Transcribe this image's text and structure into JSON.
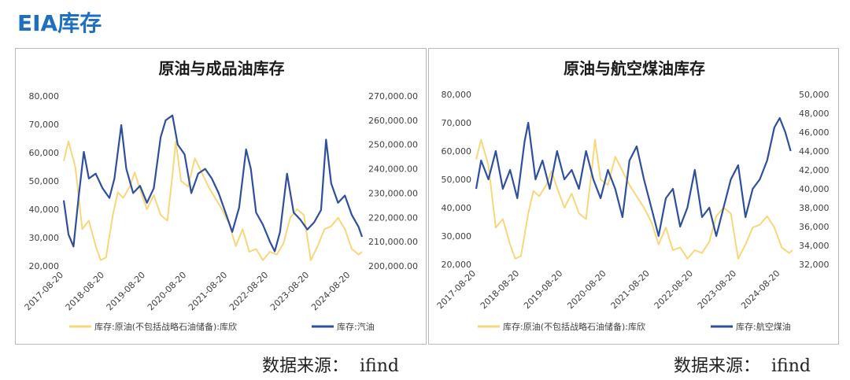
{
  "page": {
    "title": "EIA库存"
  },
  "colors": {
    "title": "#1f6fc1",
    "crude": "#f7d77a",
    "product": "#2f4f9d",
    "axis_text": "#404040"
  },
  "source_prefix": "数据来源：",
  "source_name": "ifind",
  "chart_data": [
    {
      "type": "line",
      "title": "原油与成品油库存",
      "x_ticks": [
        "2017-08-20",
        "2018-08-20",
        "2019-08-20",
        "2020-08-20",
        "2021-08-20",
        "2022-08-20",
        "2023-08-20",
        "2024-08-20"
      ],
      "x_range": [
        "2017-08-20",
        "2024-12-01"
      ],
      "left_axis": {
        "min": 20000,
        "max": 80000,
        "step": 10000,
        "labels": [
          "80,000",
          "70,000",
          "60,000",
          "50,000",
          "40,000",
          "30,000",
          "20,000"
        ]
      },
      "right_axis": {
        "min": 200000,
        "max": 270000,
        "step": 10000,
        "labels": [
          "270,000.00",
          "260,000.00",
          "250,000.00",
          "240,000.00",
          "230,000.00",
          "220,000.00",
          "210,000.00",
          "200,000.00"
        ]
      },
      "legend_position": "bottom",
      "series": [
        {
          "name": "库存:原油(不包括战略石油储备):库欣",
          "axis": "left",
          "color": "#f7d77a",
          "points": [
            [
              "2017-08-20",
              57000
            ],
            [
              "2017-10-01",
              64000
            ],
            [
              "2017-12-01",
              55000
            ],
            [
              "2018-02-01",
              33000
            ],
            [
              "2018-04-01",
              36000
            ],
            [
              "2018-06-01",
              27000
            ],
            [
              "2018-07-15",
              22000
            ],
            [
              "2018-09-01",
              23000
            ],
            [
              "2018-11-01",
              38000
            ],
            [
              "2018-12-15",
              46000
            ],
            [
              "2019-02-01",
              44000
            ],
            [
              "2019-04-01",
              48000
            ],
            [
              "2019-05-15",
              53000
            ],
            [
              "2019-07-01",
              47000
            ],
            [
              "2019-09-01",
              40000
            ],
            [
              "2019-11-01",
              45000
            ],
            [
              "2020-01-01",
              38000
            ],
            [
              "2020-03-01",
              36000
            ],
            [
              "2020-04-15",
              52000
            ],
            [
              "2020-05-15",
              64000
            ],
            [
              "2020-07-01",
              50000
            ],
            [
              "2020-09-01",
              48000
            ],
            [
              "2020-11-01",
              58000
            ],
            [
              "2021-01-01",
              53000
            ],
            [
              "2021-03-01",
              48000
            ],
            [
              "2021-05-01",
              44000
            ],
            [
              "2021-07-01",
              40000
            ],
            [
              "2021-09-01",
              35000
            ],
            [
              "2021-11-01",
              27000
            ],
            [
              "2022-01-01",
              33000
            ],
            [
              "2022-03-01",
              25000
            ],
            [
              "2022-05-01",
              26000
            ],
            [
              "2022-07-01",
              22000
            ],
            [
              "2022-09-01",
              25000
            ],
            [
              "2022-11-01",
              24000
            ],
            [
              "2023-01-01",
              28000
            ],
            [
              "2023-03-01",
              37000
            ],
            [
              "2023-05-01",
              40000
            ],
            [
              "2023-07-01",
              38000
            ],
            [
              "2023-09-01",
              22000
            ],
            [
              "2023-11-01",
              27000
            ],
            [
              "2024-01-01",
              33000
            ],
            [
              "2024-03-01",
              34000
            ],
            [
              "2024-05-01",
              37000
            ],
            [
              "2024-07-01",
              33000
            ],
            [
              "2024-09-01",
              26000
            ],
            [
              "2024-11-01",
              24000
            ],
            [
              "2024-12-01",
              25000
            ]
          ]
        },
        {
          "name": "库存:汽油",
          "axis": "right",
          "color": "#2f4f9d",
          "points": [
            [
              "2017-08-20",
              227000
            ],
            [
              "2017-10-01",
              213000
            ],
            [
              "2017-11-15",
              208000
            ],
            [
              "2018-01-01",
              229000
            ],
            [
              "2018-02-15",
              247000
            ],
            [
              "2018-04-01",
              236000
            ],
            [
              "2018-06-01",
              238000
            ],
            [
              "2018-08-01",
              232000
            ],
            [
              "2018-10-01",
              228000
            ],
            [
              "2018-11-15",
              236000
            ],
            [
              "2019-01-15",
              258000
            ],
            [
              "2019-03-01",
              240000
            ],
            [
              "2019-05-01",
              230000
            ],
            [
              "2019-07-01",
              233000
            ],
            [
              "2019-09-01",
              226000
            ],
            [
              "2019-11-01",
              232000
            ],
            [
              "2020-01-01",
              253000
            ],
            [
              "2020-02-15",
              260000
            ],
            [
              "2020-04-15",
              262000
            ],
            [
              "2020-06-01",
              250000
            ],
            [
              "2020-08-01",
              246000
            ],
            [
              "2020-10-01",
              230000
            ],
            [
              "2020-12-01",
              238000
            ],
            [
              "2021-02-01",
              240000
            ],
            [
              "2021-04-01",
              236000
            ],
            [
              "2021-06-01",
              230000
            ],
            [
              "2021-08-01",
              222000
            ],
            [
              "2021-10-01",
              214000
            ],
            [
              "2021-12-01",
              224000
            ],
            [
              "2022-02-01",
              248000
            ],
            [
              "2022-03-15",
              240000
            ],
            [
              "2022-05-01",
              222000
            ],
            [
              "2022-07-01",
              217000
            ],
            [
              "2022-09-01",
              210000
            ],
            [
              "2022-10-15",
              206000
            ],
            [
              "2022-12-01",
              214000
            ],
            [
              "2023-02-01",
              238000
            ],
            [
              "2023-04-01",
              222000
            ],
            [
              "2023-06-01",
              219000
            ],
            [
              "2023-08-01",
              215000
            ],
            [
              "2023-10-01",
              218000
            ],
            [
              "2023-12-01",
              223000
            ],
            [
              "2024-01-15",
              252000
            ],
            [
              "2024-03-01",
              234000
            ],
            [
              "2024-05-01",
              226000
            ],
            [
              "2024-07-01",
              229000
            ],
            [
              "2024-09-01",
              221000
            ],
            [
              "2024-11-01",
              216000
            ],
            [
              "2024-12-01",
              212000
            ]
          ]
        }
      ]
    },
    {
      "type": "line",
      "title": "原油与航空煤油库存",
      "x_ticks": [
        "2017-08-20",
        "2018-08-20",
        "2019-08-20",
        "2020-08-20",
        "2021-08-20",
        "2022-08-20",
        "2023-08-20",
        "2024-08-20"
      ],
      "x_range": [
        "2017-08-20",
        "2024-12-01"
      ],
      "left_axis": {
        "min": 20000,
        "max": 80000,
        "step": 10000,
        "labels": [
          "80,000",
          "70,000",
          "60,000",
          "50,000",
          "40,000",
          "30,000",
          "20,000"
        ]
      },
      "right_axis": {
        "min": 32000,
        "max": 50000,
        "step": 2000,
        "labels": [
          "50,000",
          "48,000",
          "46,000",
          "44,000",
          "42,000",
          "40,000",
          "38,000",
          "36,000",
          "34,000",
          "32,000"
        ]
      },
      "legend_position": "bottom",
      "series": [
        {
          "name": "库存:原油(不包括战略石油储备):库欣",
          "axis": "left",
          "color": "#f7d77a",
          "points": [
            [
              "2017-08-20",
              57000
            ],
            [
              "2017-10-01",
              64000
            ],
            [
              "2017-12-01",
              55000
            ],
            [
              "2018-02-01",
              33000
            ],
            [
              "2018-04-01",
              36000
            ],
            [
              "2018-06-01",
              27000
            ],
            [
              "2018-07-15",
              22000
            ],
            [
              "2018-09-01",
              23000
            ],
            [
              "2018-11-01",
              38000
            ],
            [
              "2018-12-15",
              46000
            ],
            [
              "2019-02-01",
              44000
            ],
            [
              "2019-04-01",
              48000
            ],
            [
              "2019-05-15",
              53000
            ],
            [
              "2019-07-01",
              47000
            ],
            [
              "2019-09-01",
              40000
            ],
            [
              "2019-11-01",
              45000
            ],
            [
              "2020-01-01",
              38000
            ],
            [
              "2020-03-01",
              36000
            ],
            [
              "2020-04-15",
              52000
            ],
            [
              "2020-05-15",
              64000
            ],
            [
              "2020-07-01",
              50000
            ],
            [
              "2020-09-01",
              48000
            ],
            [
              "2020-11-01",
              58000
            ],
            [
              "2021-01-01",
              53000
            ],
            [
              "2021-03-01",
              48000
            ],
            [
              "2021-05-01",
              44000
            ],
            [
              "2021-07-01",
              40000
            ],
            [
              "2021-09-01",
              35000
            ],
            [
              "2021-11-01",
              27000
            ],
            [
              "2022-01-01",
              33000
            ],
            [
              "2022-03-01",
              25000
            ],
            [
              "2022-05-01",
              26000
            ],
            [
              "2022-07-01",
              22000
            ],
            [
              "2022-09-01",
              25000
            ],
            [
              "2022-11-01",
              24000
            ],
            [
              "2023-01-01",
              28000
            ],
            [
              "2023-03-01",
              37000
            ],
            [
              "2023-05-01",
              40000
            ],
            [
              "2023-07-01",
              38000
            ],
            [
              "2023-09-01",
              22000
            ],
            [
              "2023-11-01",
              27000
            ],
            [
              "2024-01-01",
              33000
            ],
            [
              "2024-03-01",
              34000
            ],
            [
              "2024-05-01",
              37000
            ],
            [
              "2024-07-01",
              33000
            ],
            [
              "2024-09-01",
              26000
            ],
            [
              "2024-11-01",
              24000
            ],
            [
              "2024-12-01",
              25000
            ]
          ]
        },
        {
          "name": "库存:航空煤油",
          "axis": "right",
          "color": "#2f4f9d",
          "points": [
            [
              "2017-08-20",
              40000
            ],
            [
              "2017-10-01",
              43000
            ],
            [
              "2017-12-01",
              41000
            ],
            [
              "2018-02-01",
              44000
            ],
            [
              "2018-04-01",
              40000
            ],
            [
              "2018-06-01",
              42000
            ],
            [
              "2018-08-01",
              39000
            ],
            [
              "2018-10-01",
              45000
            ],
            [
              "2018-11-01",
              47000
            ],
            [
              "2019-01-01",
              41000
            ],
            [
              "2019-03-01",
              43000
            ],
            [
              "2019-05-01",
              40000
            ],
            [
              "2019-07-01",
              44000
            ],
            [
              "2019-09-01",
              41000
            ],
            [
              "2019-11-01",
              42000
            ],
            [
              "2020-01-01",
              40000
            ],
            [
              "2020-03-01",
              44000
            ],
            [
              "2020-05-01",
              41000
            ],
            [
              "2020-07-01",
              39000
            ],
            [
              "2020-09-01",
              42000
            ],
            [
              "2020-11-01",
              40000
            ],
            [
              "2021-01-01",
              37000
            ],
            [
              "2021-03-01",
              43000
            ],
            [
              "2021-05-01",
              44500
            ],
            [
              "2021-07-01",
              41000
            ],
            [
              "2021-09-01",
              38000
            ],
            [
              "2021-11-01",
              35000
            ],
            [
              "2022-01-01",
              39000
            ],
            [
              "2022-03-01",
              40000
            ],
            [
              "2022-05-01",
              36000
            ],
            [
              "2022-07-01",
              38000
            ],
            [
              "2022-09-01",
              42000
            ],
            [
              "2022-11-01",
              37000
            ],
            [
              "2023-01-01",
              38000
            ],
            [
              "2023-03-01",
              35000
            ],
            [
              "2023-05-01",
              38000
            ],
            [
              "2023-07-01",
              41000
            ],
            [
              "2023-09-01",
              42500
            ],
            [
              "2023-11-01",
              37000
            ],
            [
              "2024-01-01",
              40000
            ],
            [
              "2024-03-01",
              41000
            ],
            [
              "2024-05-01",
              43000
            ],
            [
              "2024-07-01",
              46500
            ],
            [
              "2024-08-15",
              47500
            ],
            [
              "2024-10-01",
              46000
            ],
            [
              "2024-11-15",
              44000
            ]
          ]
        }
      ]
    }
  ]
}
